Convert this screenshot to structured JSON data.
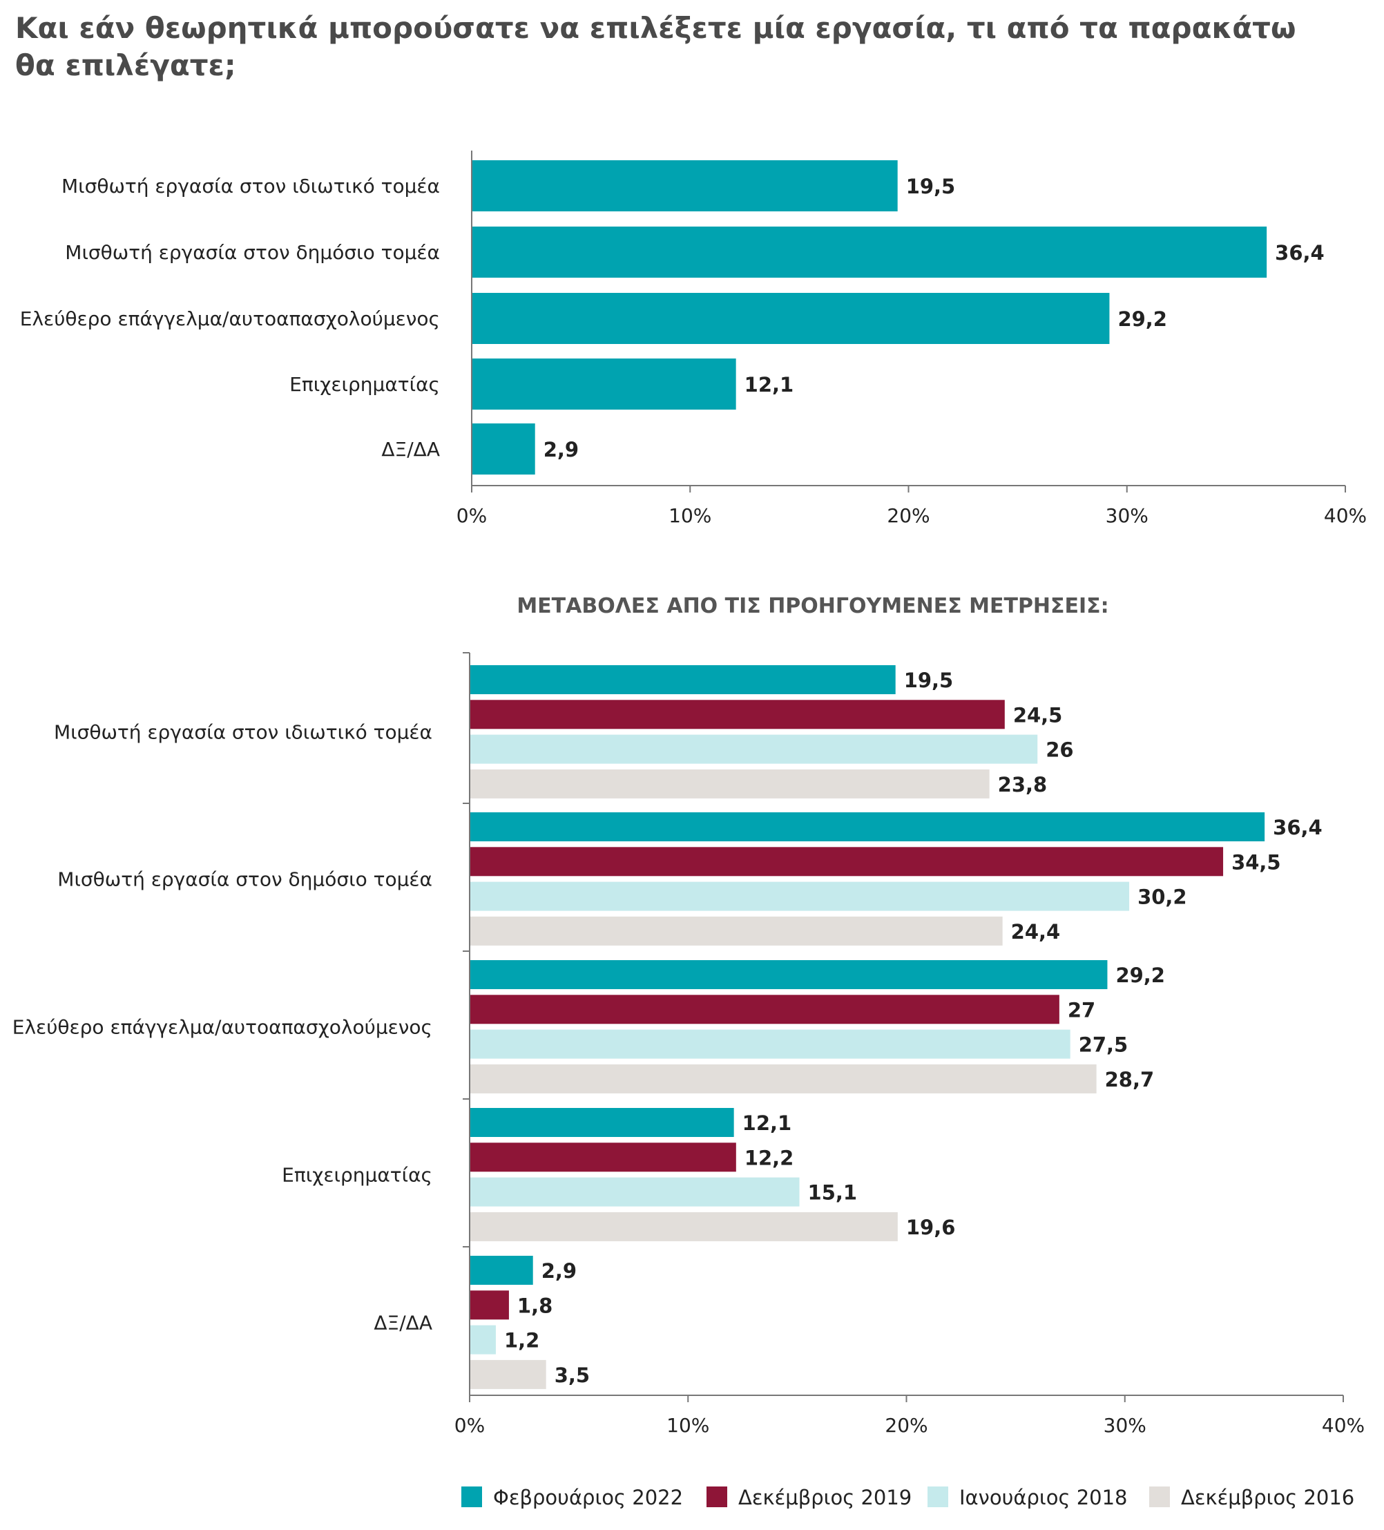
{
  "title_lines": [
    "Και εάν θεωρητικά μπορούσατε να επιλέξετε μία εργασία, τι από τα παρακάτω",
    "θα επιλέγατε;"
  ],
  "subtitle": "ΜΕΤΑΒΟΛΕΣ ΑΠΟ ΤΙΣ ΠΡΟΗΓΟΥΜΕΝΕΣ ΜΕΤΡΗΣΕΙΣ:",
  "colors": {
    "feb2022": "#00a3b0",
    "dec2019": "#8e1537",
    "jan2018": "#c5eaec",
    "dec2016": "#e2deda",
    "text": "#222222"
  },
  "chart_data": [
    {
      "type": "bar",
      "orientation": "horizontal",
      "categories": [
        "Μισθωτή εργασία στον ιδιωτικό τομέα",
        "Μισθωτή εργασία στον δημόσιο τομέα",
        "Ελεύθερο επάγγελμα/αυτοαπασχολούμενος",
        "Επιχειρηματίας",
        "ΔΞ/ΔΑ"
      ],
      "values": [
        19.5,
        36.4,
        29.2,
        12.1,
        2.9
      ],
      "value_labels": [
        "19,5",
        "36,4",
        "29,2",
        "12,1",
        "2,9"
      ],
      "xlim": [
        0,
        40
      ],
      "xticks": [
        "0%",
        "10%",
        "20%",
        "30%",
        "40%"
      ],
      "grid": false
    },
    {
      "type": "bar",
      "orientation": "horizontal",
      "title": "ΜΕΤΑΒΟΛΕΣ ΑΠΟ ΤΙΣ ΠΡΟΗΓΟΥΜΕΝΕΣ ΜΕΤΡΗΣΕΙΣ:",
      "categories": [
        "Μισθωτή εργασία στον ιδιωτικό τομέα",
        "Μισθωτή εργασία στον δημόσιο τομέα",
        "Ελεύθερο επάγγελμα/αυτοαπασχολούμενος",
        "Επιχειρηματίας",
        "ΔΞ/ΔΑ"
      ],
      "series": [
        {
          "name": "Φεβρουάριος 2022",
          "values": [
            19.5,
            36.4,
            29.2,
            12.1,
            2.9
          ],
          "labels": [
            "19,5",
            "36,4",
            "29,2",
            "12,1",
            "2,9"
          ]
        },
        {
          "name": "Δεκέμβριος 2019",
          "values": [
            24.5,
            34.5,
            27,
            12.2,
            1.8
          ],
          "labels": [
            "24,5",
            "34,5",
            "27",
            "12,2",
            "1,8"
          ]
        },
        {
          "name": "Ιανουάριος 2018",
          "values": [
            26,
            30.2,
            27.5,
            15.1,
            1.2
          ],
          "labels": [
            "26",
            "30,2",
            "27,5",
            "15,1",
            "1,2"
          ]
        },
        {
          "name": "Δεκέμβριος 2016",
          "values": [
            23.8,
            24.4,
            28.7,
            19.6,
            3.5
          ],
          "labels": [
            "23,8",
            "24,4",
            "28,7",
            "19,6",
            "3,5"
          ]
        }
      ],
      "xlim": [
        0,
        40
      ],
      "xticks": [
        "0%",
        "10%",
        "20%",
        "30%",
        "40%"
      ],
      "legend": "bottom",
      "grid": false
    }
  ]
}
